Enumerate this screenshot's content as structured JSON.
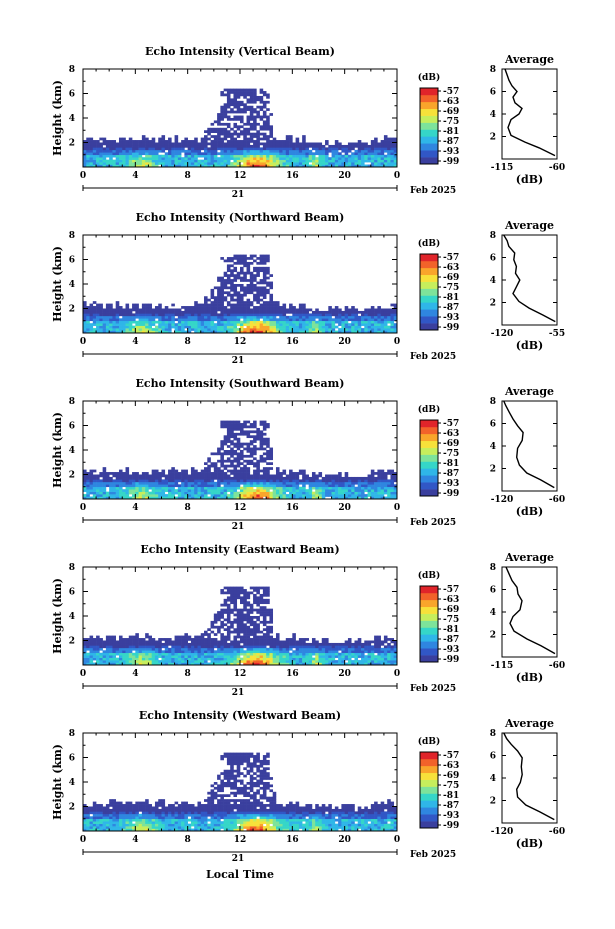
{
  "colors": {
    "scale": [
      "#3a3f9e",
      "#3157c6",
      "#2f86e0",
      "#2fb6e8",
      "#35d6c8",
      "#7de39a",
      "#c6ee5c",
      "#f7e13a",
      "#f9a52b",
      "#f2622a",
      "#e0242a"
    ],
    "background": "#ffffff"
  },
  "shared": {
    "x_ticks": [
      "0",
      "4",
      "8",
      "12",
      "16",
      "20",
      "0"
    ],
    "y_ticks": [
      "8",
      "6",
      "4",
      "2"
    ],
    "ylabel": "Height (km)",
    "date_day": "21",
    "date_month": "Feb 2025",
    "colorbar_unit": "(dB)",
    "colorbar_ticks": [
      "-57",
      "-63",
      "-69",
      "-75",
      "-81",
      "-87",
      "-93",
      "-99"
    ],
    "avg_title": "Average",
    "avg_xlabel": "(dB)",
    "xlabel_bottom": "Local Time"
  },
  "chart_data": [
    {
      "type": "heatmap",
      "title": "Echo Intensity (Vertical Beam)",
      "ylabel": "Height (km)",
      "xlim": [
        0,
        24
      ],
      "ylim": [
        0,
        8
      ],
      "profile": {
        "type": "line",
        "title": "Average",
        "xlabel": "(dB)",
        "xlim": [
          -115,
          -60
        ],
        "x_ticks": [
          "-115",
          "-60"
        ],
        "points": [
          [
            -62,
            0.3
          ],
          [
            -78,
            1.0
          ],
          [
            -92,
            1.5
          ],
          [
            -106,
            2.1
          ],
          [
            -109,
            2.8
          ],
          [
            -106,
            3.5
          ],
          [
            -98,
            4.0
          ],
          [
            -95,
            4.5
          ],
          [
            -102,
            5.0
          ],
          [
            -104,
            5.5
          ],
          [
            -100,
            6.0
          ],
          [
            -105,
            6.5
          ],
          [
            -108,
            7.0
          ],
          [
            -110,
            7.5
          ],
          [
            -112,
            8.0
          ]
        ]
      }
    },
    {
      "type": "heatmap",
      "title": "Echo Intensity (Northward Beam)",
      "ylabel": "Height (km)",
      "xlim": [
        0,
        24
      ],
      "ylim": [
        0,
        8
      ],
      "profile": {
        "type": "line",
        "title": "Average",
        "xlabel": "(dB)",
        "xlim": [
          -120,
          -55
        ],
        "x_ticks": [
          "-120",
          "-55"
        ],
        "points": [
          [
            -57,
            0.3
          ],
          [
            -72,
            0.9
          ],
          [
            -88,
            1.5
          ],
          [
            -100,
            2.1
          ],
          [
            -107,
            2.8
          ],
          [
            -103,
            3.4
          ],
          [
            -99,
            4.0
          ],
          [
            -104,
            4.6
          ],
          [
            -103,
            5.2
          ],
          [
            -106,
            5.8
          ],
          [
            -105,
            6.4
          ],
          [
            -112,
            7.0
          ],
          [
            -114,
            7.5
          ],
          [
            -118,
            8.0
          ]
        ]
      }
    },
    {
      "type": "heatmap",
      "title": "Echo Intensity (Southward Beam)",
      "ylabel": "Height (km)",
      "xlim": [
        0,
        24
      ],
      "ylim": [
        0,
        8
      ],
      "profile": {
        "type": "line",
        "title": "Average",
        "xlabel": "(dB)",
        "xlim": [
          -120,
          -60
        ],
        "x_ticks": [
          "-120",
          "-60"
        ],
        "points": [
          [
            -63,
            0.3
          ],
          [
            -78,
            1.0
          ],
          [
            -93,
            1.6
          ],
          [
            -101,
            2.3
          ],
          [
            -104,
            3.0
          ],
          [
            -103,
            3.8
          ],
          [
            -98,
            4.5
          ],
          [
            -97,
            5.2
          ],
          [
            -103,
            5.8
          ],
          [
            -108,
            6.4
          ],
          [
            -112,
            7.0
          ],
          [
            -116,
            7.6
          ],
          [
            -118,
            8.0
          ]
        ]
      }
    },
    {
      "type": "heatmap",
      "title": "Echo Intensity (Eastward Beam)",
      "ylabel": "Height (km)",
      "xlim": [
        0,
        24
      ],
      "ylim": [
        0,
        8
      ],
      "profile": {
        "type": "line",
        "title": "Average",
        "xlabel": "(dB)",
        "xlim": [
          -115,
          -60
        ],
        "x_ticks": [
          "-115",
          "-60"
        ],
        "points": [
          [
            -62,
            0.3
          ],
          [
            -76,
            1.0
          ],
          [
            -90,
            1.6
          ],
          [
            -103,
            2.3
          ],
          [
            -107,
            3.0
          ],
          [
            -104,
            3.6
          ],
          [
            -97,
            4.2
          ],
          [
            -95,
            5.0
          ],
          [
            -99,
            5.6
          ],
          [
            -100,
            6.2
          ],
          [
            -105,
            6.8
          ],
          [
            -108,
            7.4
          ],
          [
            -111,
            8.0
          ]
        ]
      }
    },
    {
      "type": "heatmap",
      "title": "Echo Intensity (Westward Beam)",
      "ylabel": "Height (km)",
      "xlim": [
        0,
        24
      ],
      "ylim": [
        0,
        8
      ],
      "xlabel": "Local Time",
      "profile": {
        "type": "line",
        "title": "Average",
        "xlabel": "(dB)",
        "xlim": [
          -120,
          -60
        ],
        "x_ticks": [
          "-120",
          "-60"
        ],
        "points": [
          [
            -63,
            0.3
          ],
          [
            -79,
            1.0
          ],
          [
            -94,
            1.6
          ],
          [
            -103,
            2.3
          ],
          [
            -104,
            3.0
          ],
          [
            -100,
            3.6
          ],
          [
            -98,
            4.3
          ],
          [
            -99,
            5.0
          ],
          [
            -98,
            5.8
          ],
          [
            -103,
            6.4
          ],
          [
            -110,
            7.0
          ],
          [
            -115,
            7.5
          ],
          [
            -118,
            8.0
          ]
        ]
      }
    }
  ]
}
